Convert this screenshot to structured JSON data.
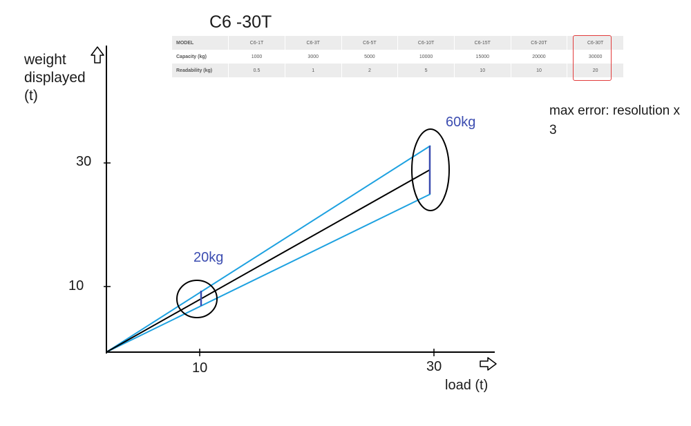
{
  "title": "C6 -30T",
  "table": {
    "header": [
      "MODEL",
      "C6-1T",
      "C6-3T",
      "C6-5T",
      "C6-10T",
      "C6-15T",
      "C6-20T",
      "C6-30T"
    ],
    "rows": [
      [
        "Capacity (kg)",
        "1000",
        "3000",
        "5000",
        "10000",
        "15000",
        "20000",
        "30000"
      ],
      [
        "Readability (kg)",
        "0.5",
        "1",
        "2",
        "5",
        "10",
        "10",
        "20"
      ]
    ],
    "highlighted_column": "C6-30T",
    "highlight_color": "#e23b3b"
  },
  "y_axis_label": "weight displayed (t)",
  "x_axis_label": "load",
  "x_axis_unit": "(t)",
  "ticks": {
    "y": [
      "30",
      "10"
    ],
    "x": [
      "10",
      "30"
    ]
  },
  "annotations": {
    "tolerance_low": "20kg",
    "tolerance_high": "60kg",
    "max_error": "max error: resolution x 3"
  },
  "colors": {
    "ideal_line": "#000000",
    "error_band": "#1da1e0",
    "tolerance_bar": "#3b4cb0"
  },
  "icons": {
    "y_axis_arrow": "outline-up-arrow-icon",
    "x_axis_arrow": "outline-right-arrow-icon"
  }
}
